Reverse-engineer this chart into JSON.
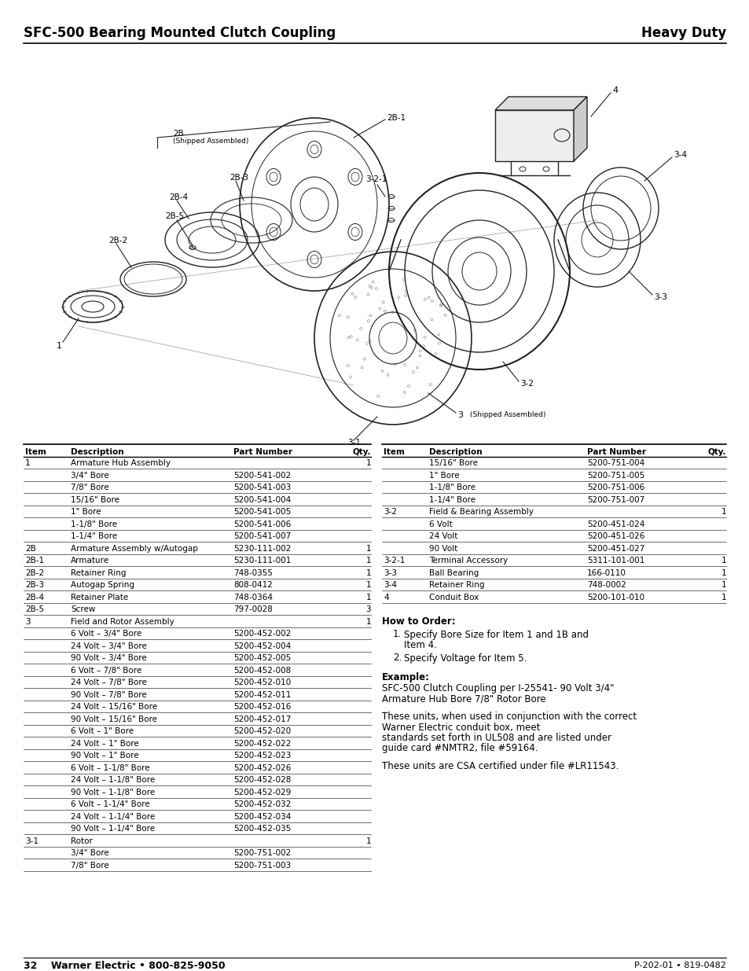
{
  "title_left": "SFC-500 Bearing Mounted Clutch Coupling",
  "title_right": "Heavy Duty",
  "left_table_rows": [
    [
      "1",
      "Armature Hub Assembly",
      "",
      "1"
    ],
    [
      "",
      "3/4\" Bore",
      "5200-541-002",
      ""
    ],
    [
      "",
      "7/8\" Bore",
      "5200-541-003",
      ""
    ],
    [
      "",
      "15/16\" Bore",
      "5200-541-004",
      ""
    ],
    [
      "",
      "1\" Bore",
      "5200-541-005",
      ""
    ],
    [
      "",
      "1-1/8\" Bore",
      "5200-541-006",
      ""
    ],
    [
      "",
      "1-1/4\" Bore",
      "5200-541-007",
      ""
    ],
    [
      "2B",
      "Armature Assembly w/Autogap",
      "5230-111-002",
      "1"
    ],
    [
      "2B-1",
      "Armature",
      "5230-111-001",
      "1"
    ],
    [
      "2B-2",
      "Retainer Ring",
      "748-0355",
      "1"
    ],
    [
      "2B-3",
      "Autogap Spring",
      "808-0412",
      "1"
    ],
    [
      "2B-4",
      "Retainer Plate",
      "748-0364",
      "1"
    ],
    [
      "2B-5",
      "Screw",
      "797-0028",
      "3"
    ],
    [
      "3",
      "Field and Rotor Assembly",
      "",
      "1"
    ],
    [
      "",
      "6 Volt – 3/4\" Bore",
      "5200-452-002",
      ""
    ],
    [
      "",
      "24 Volt – 3/4\" Bore",
      "5200-452-004",
      ""
    ],
    [
      "",
      "90 Volt – 3/4\" Bore",
      "5200-452-005",
      ""
    ],
    [
      "",
      "6 Volt – 7/8\" Bore",
      "5200-452-008",
      ""
    ],
    [
      "",
      "24 Volt – 7/8\" Bore",
      "5200-452-010",
      ""
    ],
    [
      "",
      "90 Volt – 7/8\" Bore",
      "5200-452-011",
      ""
    ],
    [
      "",
      "24 Volt – 15/16\" Bore",
      "5200-452-016",
      ""
    ],
    [
      "",
      "90 Volt – 15/16\" Bore",
      "5200-452-017",
      ""
    ],
    [
      "",
      "6 Volt – 1\" Bore",
      "5200-452-020",
      ""
    ],
    [
      "",
      "24 Volt – 1\" Bore",
      "5200-452-022",
      ""
    ],
    [
      "",
      "90 Volt – 1\" Bore",
      "5200-452-023",
      ""
    ],
    [
      "",
      "6 Volt – 1-1/8\" Bore",
      "5200-452-026",
      ""
    ],
    [
      "",
      "24 Volt – 1-1/8\" Bore",
      "5200-452-028",
      ""
    ],
    [
      "",
      "90 Volt – 1-1/8\" Bore",
      "5200-452-029",
      ""
    ],
    [
      "",
      "6 Volt – 1-1/4\" Bore",
      "5200-452-032",
      ""
    ],
    [
      "",
      "24 Volt – 1-1/4\" Bore",
      "5200-452-034",
      ""
    ],
    [
      "",
      "90 Volt – 1-1/4\" Bore",
      "5200-452-035",
      ""
    ],
    [
      "3-1",
      "Rotor",
      "",
      "1"
    ],
    [
      "",
      "3/4\" Bore",
      "5200-751-002",
      ""
    ],
    [
      "",
      "7/8\" Bore",
      "5200-751-003",
      ""
    ]
  ],
  "right_table_rows": [
    [
      "",
      "15/16\" Bore",
      "5200-751-004",
      ""
    ],
    [
      "",
      "1\" Bore",
      "5200-751-005",
      ""
    ],
    [
      "",
      "1-1/8\" Bore",
      "5200-751-006",
      ""
    ],
    [
      "",
      "1-1/4\" Bore",
      "5200-751-007",
      ""
    ],
    [
      "3-2",
      "Field & Bearing Assembly",
      "",
      "1"
    ],
    [
      "",
      "6 Volt",
      "5200-451-024",
      ""
    ],
    [
      "",
      "24 Volt",
      "5200-451-026",
      ""
    ],
    [
      "",
      "90 Volt",
      "5200-451-027",
      ""
    ],
    [
      "3-2-1",
      "Terminal Accessory",
      "5311-101-001",
      "1"
    ],
    [
      "3-3",
      "Ball Bearing",
      "166-0110",
      "1"
    ],
    [
      "3-4",
      "Retainer Ring",
      "748-0002",
      "1"
    ],
    [
      "4",
      "Conduit Box",
      "5200-101-010",
      "1"
    ]
  ],
  "how_to_order_title": "How to Order:",
  "how_to_order_items": [
    "Specify Bore Size for Item 1 and 1B and\nItem 4.",
    "Specify Voltage for Item 5."
  ],
  "example_title": "Example:",
  "example_text": "SFC-500 Clutch Coupling per I-25541- 90 Volt 3/4\"\nArmature Hub Bore 7/8\" Rotor Bore",
  "para1": "These units, when used in conjunction with the correct\nWarner Electric conduit box, meet\nstandards set forth in UL508 and are listed under\nguide card #NMTR2, file #59164.",
  "para2": "These units are CSA certified under file #LR11543.",
  "footer_left": "32    Warner Electric • 800-825-9050",
  "footer_right": "P-202-01 • 819-0482",
  "bg_color": "#ffffff",
  "text_color": "#000000"
}
